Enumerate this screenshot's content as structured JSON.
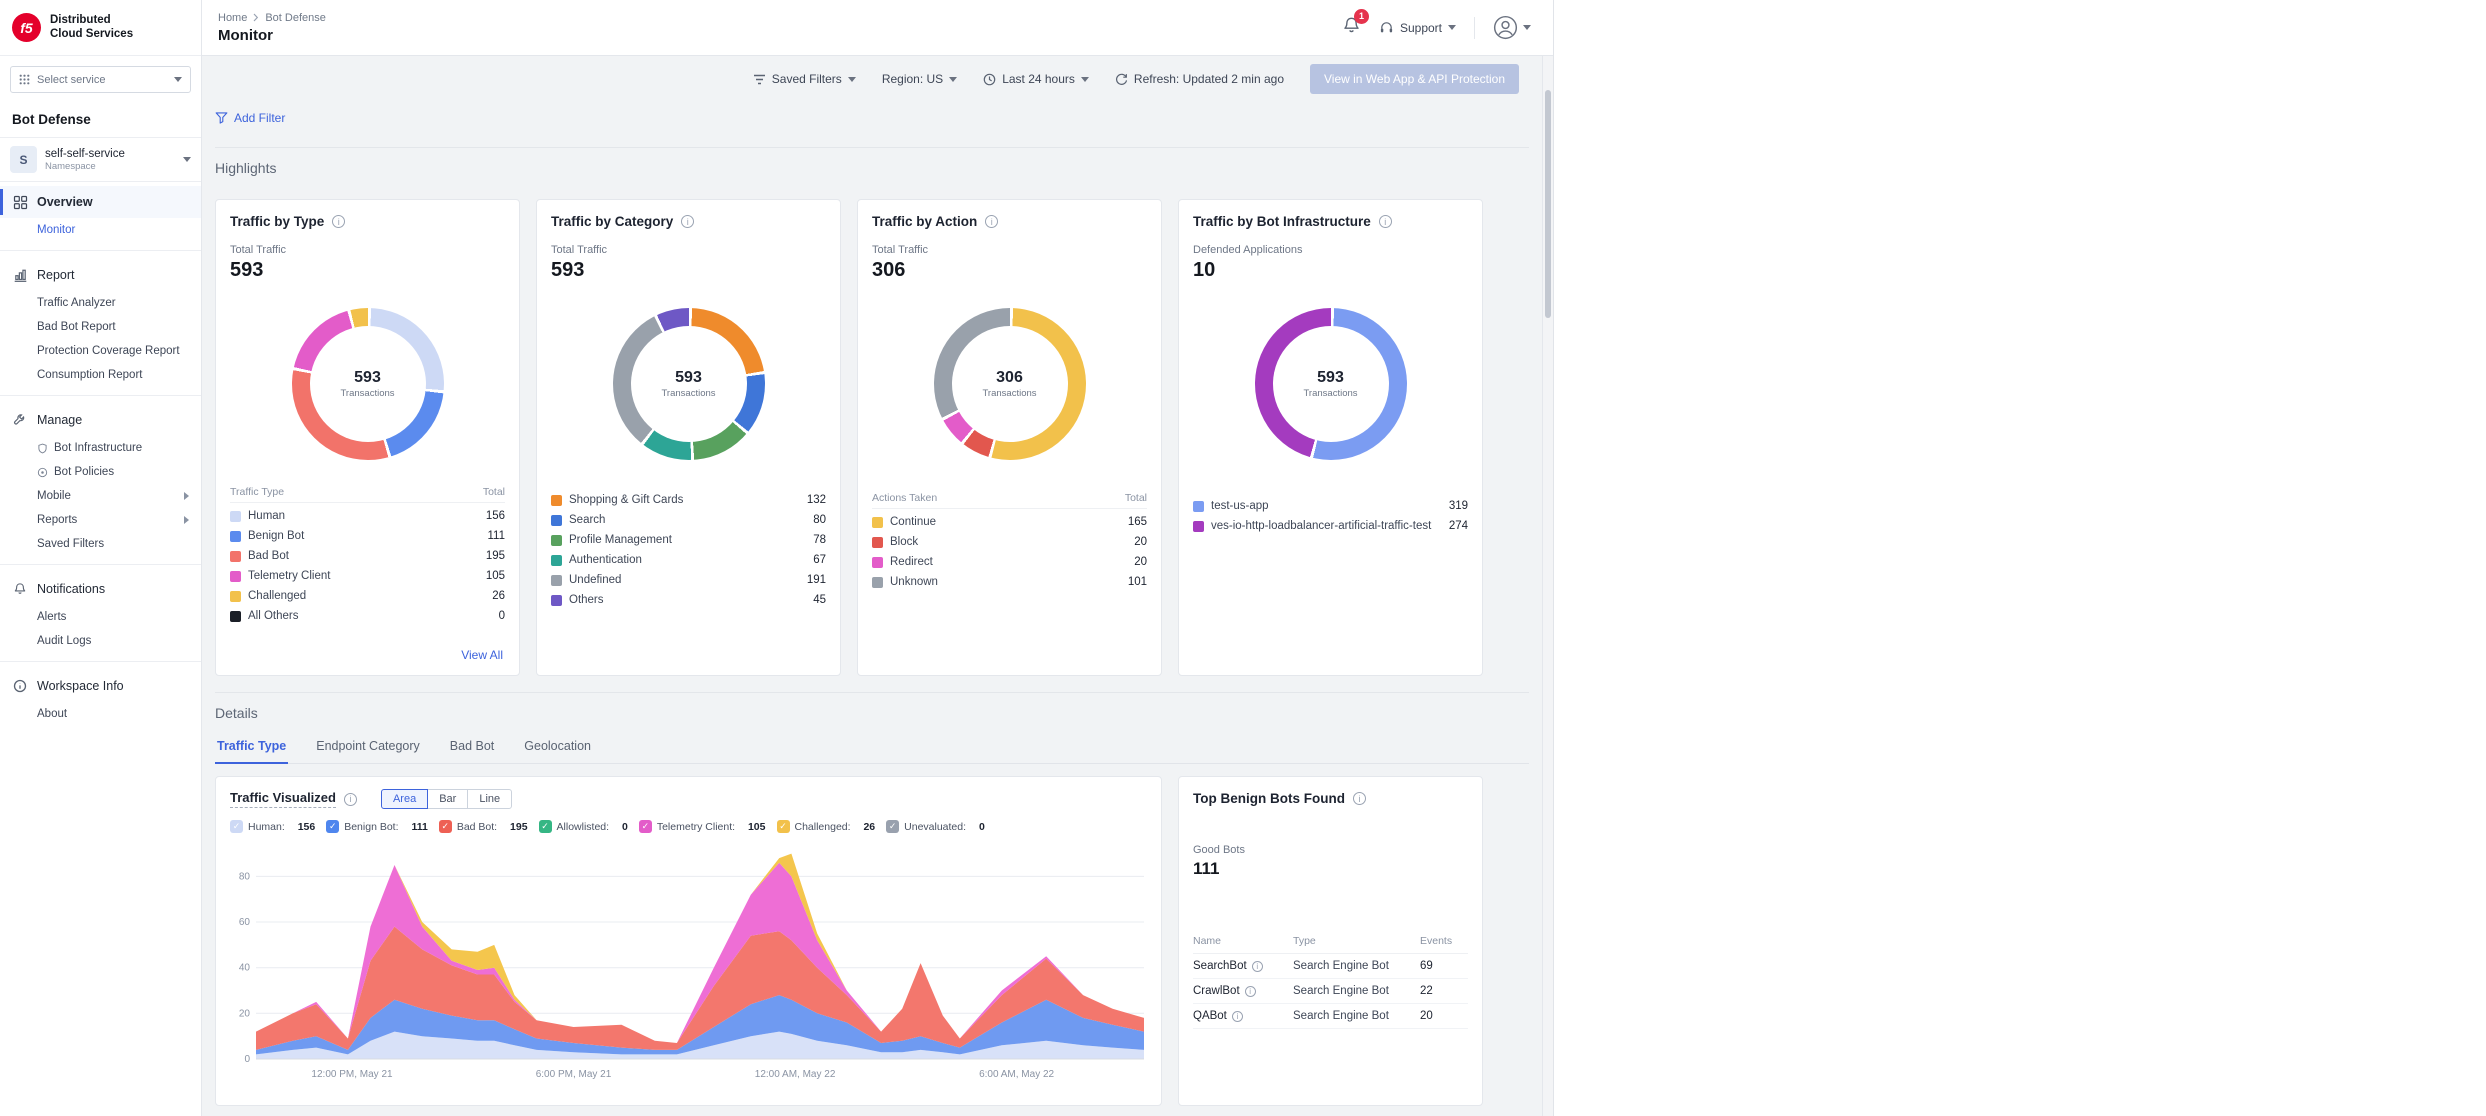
{
  "brand": {
    "logo_text": "f5",
    "line1": "Distributed",
    "line2": "Cloud Services"
  },
  "service_selector": {
    "label": "Select service"
  },
  "sidebar": {
    "product": "Bot Defense",
    "namespace": {
      "initial": "S",
      "name": "self-self-service",
      "type_label": "Namespace"
    },
    "overview": {
      "label": "Overview",
      "children": [
        {
          "label": "Monitor"
        }
      ]
    },
    "report": {
      "label": "Report",
      "children": [
        {
          "label": "Traffic Analyzer"
        },
        {
          "label": "Bad Bot Report"
        },
        {
          "label": "Protection Coverage Report"
        },
        {
          "label": "Consumption Report"
        }
      ]
    },
    "manage": {
      "label": "Manage",
      "children": [
        {
          "label": "Bot Infrastructure"
        },
        {
          "label": "Bot Policies"
        },
        {
          "label": "Mobile"
        },
        {
          "label": "Reports"
        },
        {
          "label": "Saved Filters"
        }
      ]
    },
    "notifications": {
      "label": "Notifications",
      "children": [
        {
          "label": "Alerts"
        },
        {
          "label": "Audit Logs"
        }
      ]
    },
    "workspace": {
      "label": "Workspace Info",
      "children": [
        {
          "label": "About"
        }
      ]
    }
  },
  "header": {
    "breadcrumb_home": "Home",
    "breadcrumb_current": "Bot Defense",
    "title": "Monitor",
    "notification_badge": "1",
    "support_label": "Support"
  },
  "toolbar": {
    "saved_filters": "Saved Filters",
    "region": "Region: US",
    "time_range": "Last 24 hours",
    "refresh_status": "Refresh: Updated 2 min ago",
    "cta": "View in Web App & API Protection",
    "add_filter": "Add Filter"
  },
  "sections": {
    "highlights": "Highlights",
    "details": "Details"
  },
  "highlights": {
    "cards": [
      {
        "title": "Traffic by Type",
        "stat_label": "Total Traffic",
        "stat_value": "593",
        "center_value": "593",
        "center_label": "Transactions",
        "legend_header": {
          "name": "Traffic Type",
          "value": "Total"
        },
        "segments": [
          {
            "label": "Human",
            "value": 156,
            "color": "#cdd9f5"
          },
          {
            "label": "Benign Bot",
            "value": 111,
            "color": "#5b8bee"
          },
          {
            "label": "Bad Bot",
            "value": 195,
            "color": "#f2736a"
          },
          {
            "label": "Telemetry Client",
            "value": 105,
            "color": "#e35cc9"
          },
          {
            "label": "Challenged",
            "value": 26,
            "color": "#f2c14b"
          },
          {
            "label": "All Others",
            "value": 0,
            "color": "#1b1f27"
          }
        ],
        "view_all": "View All"
      },
      {
        "title": "Traffic by Category",
        "stat_label": "Total Traffic",
        "stat_value": "593",
        "center_value": "593",
        "center_label": "Transactions",
        "segments": [
          {
            "label": "Shopping & Gift Cards",
            "value": 132,
            "color": "#ef8b2c"
          },
          {
            "label": "Search",
            "value": 80,
            "color": "#3f76d8"
          },
          {
            "label": "Profile Management",
            "value": 78,
            "color": "#58a15e"
          },
          {
            "label": "Authentication",
            "value": 67,
            "color": "#2da596"
          },
          {
            "label": "Undefined",
            "value": 191,
            "color": "#99a1ab"
          },
          {
            "label": "Others",
            "value": 45,
            "color": "#6e58c5"
          }
        ]
      },
      {
        "title": "Traffic by Action",
        "stat_label": "Total Traffic",
        "stat_value": "306",
        "center_value": "306",
        "center_label": "Transactions",
        "legend_header": {
          "name": "Actions Taken",
          "value": "Total"
        },
        "segments": [
          {
            "label": "Continue",
            "value": 165,
            "color": "#f2c14b"
          },
          {
            "label": "Block",
            "value": 20,
            "color": "#e2574e"
          },
          {
            "label": "Redirect",
            "value": 20,
            "color": "#e35cc9"
          },
          {
            "label": "Unknown",
            "value": 101,
            "color": "#99a1ab"
          }
        ]
      },
      {
        "title": "Traffic by Bot Infrastructure",
        "stat_label": "Defended Applications",
        "stat_value": "10",
        "center_value": "593",
        "center_label": "Transactions",
        "segments": [
          {
            "label": "test-us-app",
            "value": 319,
            "color": "#7b9cf2"
          },
          {
            "label": "ves-io-http-loadbalancer-artificial-traffic-test",
            "value": 274,
            "color": "#a43bbf"
          }
        ]
      }
    ]
  },
  "details": {
    "tabs": [
      {
        "label": "Traffic Type"
      },
      {
        "label": "Endpoint Category"
      },
      {
        "label": "Bad Bot"
      },
      {
        "label": "Geolocation"
      }
    ],
    "traffic_visualized": {
      "title": "Traffic Visualized",
      "modes": [
        {
          "label": "Area"
        },
        {
          "label": "Bar"
        },
        {
          "label": "Line"
        }
      ],
      "legend": [
        {
          "label": "Human:",
          "count": "156",
          "color": "#cdd9f5"
        },
        {
          "label": "Benign Bot:",
          "count": "111",
          "color": "#4f86ee"
        },
        {
          "label": "Bad Bot:",
          "count": "195",
          "color": "#ee6054"
        },
        {
          "label": "Allowlisted:",
          "count": "0",
          "color": "#35b684"
        },
        {
          "label": "Telemetry Client:",
          "count": "105",
          "color": "#e35cc9"
        },
        {
          "label": "Challenged:",
          "count": "26",
          "color": "#f2c14b"
        },
        {
          "label": "Unevaluated:",
          "count": "0",
          "color": "#99a1ae"
        }
      ],
      "chart_data": {
        "type": "area",
        "stacked": true,
        "title": "Traffic Visualized",
        "ylim": [
          0,
          92
        ],
        "y_ticks": [
          0,
          20,
          40,
          60,
          80
        ],
        "x_unit": "hours from start of 24h window",
        "x": [
          0,
          1.0,
          1.63,
          2.49,
          3.1,
          3.75,
          4.5,
          5.3,
          6.0,
          6.45,
          7.0,
          7.6,
          8.6,
          9.9,
          10.8,
          11.4,
          12.4,
          13.4,
          14.17,
          14.5,
          15.2,
          16.0,
          16.93,
          17.5,
          18.0,
          18.6,
          19.06,
          20.2,
          21.4,
          22.4,
          23.2,
          24.05
        ],
        "x_ticks": [
          {
            "x": 2.6,
            "label": "12:00 PM, May 21"
          },
          {
            "x": 8.6,
            "label": "6:00 PM, May 21"
          },
          {
            "x": 14.6,
            "label": "12:00 AM, May 22"
          },
          {
            "x": 20.6,
            "label": "6:00 AM, May 22"
          }
        ],
        "series": [
          {
            "name": "Human",
            "color": "#d8e1f8",
            "values": [
              2,
              4,
              5,
              2,
              8,
              12,
              10,
              9,
              8,
              8,
              6,
              4,
              3,
              2,
              2,
              2,
              6,
              10,
              12,
              11,
              8,
              6,
              3,
              3,
              4,
              3,
              2,
              6,
              8,
              6,
              5,
              4
            ]
          },
          {
            "name": "Benign Bot",
            "color": "#6f9af1",
            "values": [
              2,
              4,
              5,
              2,
              10,
              14,
              12,
              10,
              9,
              9,
              7,
              5,
              4,
              3,
              2,
              2,
              8,
              14,
              16,
              15,
              12,
              10,
              4,
              5,
              6,
              4,
              3,
              10,
              18,
              12,
              10,
              8
            ]
          },
          {
            "name": "Bad Bot",
            "color": "#f3776d",
            "values": [
              8,
              12,
              14,
              5,
              25,
              32,
              26,
              22,
              20,
              20,
              12,
              8,
              7,
              10,
              4,
              3,
              18,
              30,
              28,
              26,
              20,
              12,
              5,
              14,
              32,
              12,
              4,
              12,
              18,
              10,
              7,
              6
            ]
          },
          {
            "name": "Telemetry Client",
            "color": "#ee6ed5",
            "values": [
              0,
              0,
              1,
              0,
              15,
              27,
              10,
              2,
              2,
              3,
              1,
              0,
              0,
              0,
              0,
              0,
              8,
              18,
              30,
              28,
              12,
              2,
              0,
              0,
              0,
              0,
              0,
              2,
              1,
              0,
              0,
              0
            ]
          },
          {
            "name": "Challenged",
            "color": "#f4c64d",
            "values": [
              0,
              0,
              0,
              0,
              0,
              0,
              2,
              5,
              8,
              10,
              2,
              0,
              0,
              0,
              0,
              0,
              0,
              0,
              2,
              10,
              3,
              0,
              0,
              0,
              0,
              0,
              0,
              0,
              0,
              0,
              0,
              0
            ]
          }
        ]
      }
    },
    "top_benign_bots": {
      "title": "Top Benign Bots Found",
      "stat_label": "Good Bots",
      "stat_value": "111",
      "columns": [
        "Name",
        "Type",
        "Events"
      ],
      "rows": [
        {
          "name": "SearchBot",
          "type": "Search Engine Bot",
          "events": "69"
        },
        {
          "name": "CrawlBot",
          "type": "Search Engine Bot",
          "events": "22"
        },
        {
          "name": "QABot",
          "type": "Search Engine Bot",
          "events": "20"
        }
      ]
    }
  },
  "colors": {
    "accent": "#3d63dc",
    "cta_bg": "#b7c3e1",
    "badge": "#e5334d",
    "brand_red": "#e4002b"
  }
}
